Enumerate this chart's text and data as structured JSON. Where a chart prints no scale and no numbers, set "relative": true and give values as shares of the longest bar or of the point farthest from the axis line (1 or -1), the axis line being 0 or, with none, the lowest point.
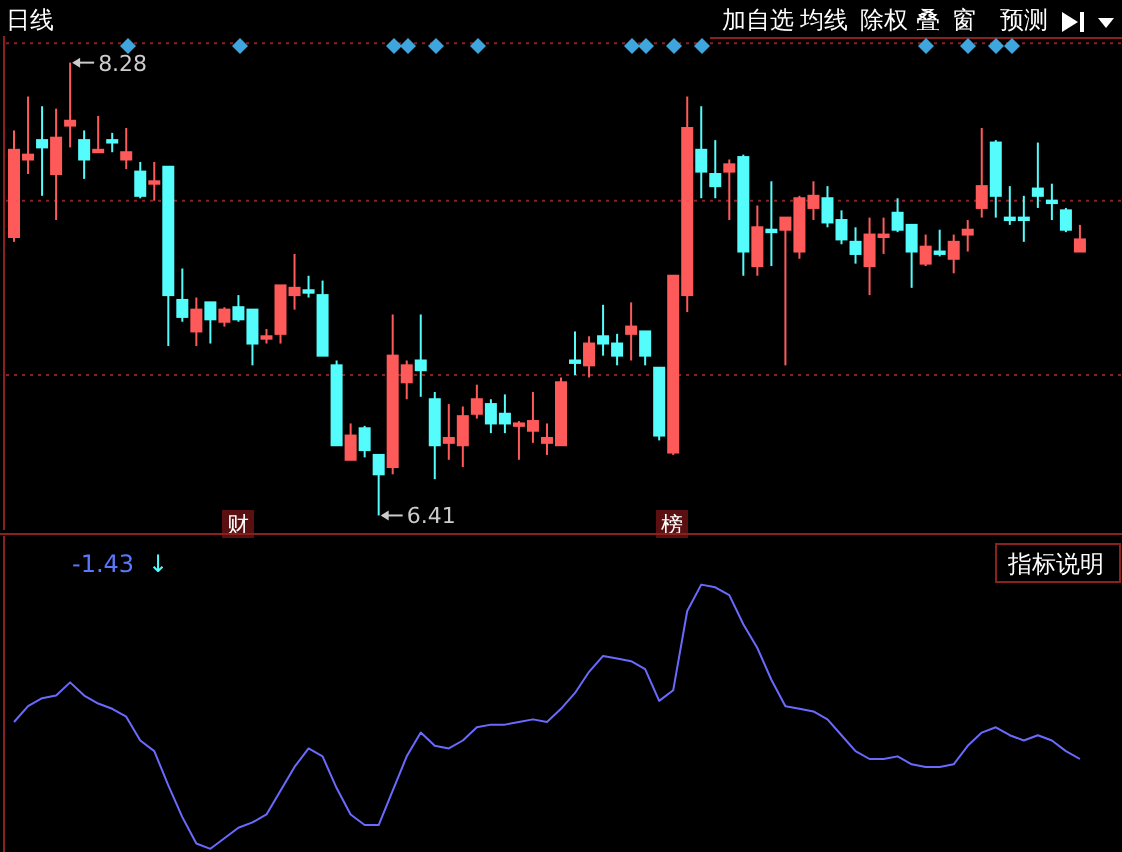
{
  "chart_data": [
    {
      "type": "candlestick",
      "title": "日线",
      "ylim": [
        6.35,
        8.39
      ],
      "grid": "y",
      "yticks": [
        {
          "value": 8.36,
          "label": null
        },
        {
          "value": 7.71,
          "label": null
        },
        {
          "value": 6.99,
          "label": null
        }
      ],
      "categories": [
        null,
        null,
        null,
        null,
        null,
        null,
        null,
        null,
        null,
        null,
        null,
        null,
        null,
        null,
        null,
        null,
        null,
        null,
        null,
        null,
        null,
        null,
        null,
        null,
        null,
        null,
        null,
        null,
        null,
        null,
        null,
        null,
        null,
        null,
        null,
        null,
        null,
        null,
        null,
        null,
        null,
        null,
        null,
        null,
        null,
        null,
        null,
        null,
        null,
        null,
        null,
        null,
        null,
        null,
        null,
        null,
        null,
        null,
        null,
        null,
        null,
        null,
        null,
        null,
        null,
        null,
        null,
        null,
        null,
        null,
        null,
        null,
        null,
        null,
        null,
        null,
        null
      ],
      "ohlc": [
        [
          7.56,
          8.0,
          7.54,
          7.92
        ],
        [
          7.88,
          8.14,
          7.82,
          7.9
        ],
        [
          7.96,
          8.1,
          7.73,
          7.93
        ],
        [
          7.82,
          8.09,
          7.63,
          7.97
        ],
        [
          8.02,
          8.28,
          7.93,
          8.04
        ],
        [
          7.96,
          8.0,
          7.8,
          7.88
        ],
        [
          7.91,
          8.06,
          7.91,
          7.92
        ],
        [
          7.96,
          7.99,
          7.91,
          7.95
        ],
        [
          7.88,
          8.01,
          7.84,
          7.91
        ],
        [
          7.83,
          7.87,
          7.72,
          7.73
        ],
        [
          7.78,
          7.87,
          7.71,
          7.79
        ],
        [
          7.85,
          7.85,
          7.11,
          7.32
        ],
        [
          7.3,
          7.43,
          7.21,
          7.23
        ],
        [
          7.17,
          7.31,
          7.11,
          7.26
        ],
        [
          7.29,
          7.29,
          7.12,
          7.22
        ],
        [
          7.21,
          7.27,
          7.19,
          7.26
        ],
        [
          7.27,
          7.32,
          7.21,
          7.22
        ],
        [
          7.26,
          7.26,
          7.03,
          7.12
        ],
        [
          7.14,
          7.18,
          7.12,
          7.15
        ],
        [
          7.16,
          7.36,
          7.12,
          7.36
        ],
        [
          7.32,
          7.49,
          7.26,
          7.35
        ],
        [
          7.34,
          7.4,
          7.31,
          7.33
        ],
        [
          7.32,
          7.38,
          7.07,
          7.07
        ],
        [
          7.03,
          7.05,
          6.7,
          6.7
        ],
        [
          6.64,
          6.79,
          6.64,
          6.74
        ],
        [
          6.77,
          6.78,
          6.65,
          6.68
        ],
        [
          6.66,
          6.66,
          6.41,
          6.58
        ],
        [
          6.61,
          7.24,
          6.58,
          7.07
        ],
        [
          6.96,
          7.05,
          6.89,
          7.03
        ],
        [
          7.05,
          7.24,
          6.9,
          7.01
        ],
        [
          6.89,
          6.92,
          6.56,
          6.7
        ],
        [
          6.71,
          6.87,
          6.64,
          6.73
        ],
        [
          6.7,
          6.86,
          6.61,
          6.82
        ],
        [
          6.83,
          6.95,
          6.81,
          6.89
        ],
        [
          6.87,
          6.89,
          6.75,
          6.79
        ],
        [
          6.83,
          6.91,
          6.75,
          6.79
        ],
        [
          6.78,
          6.8,
          6.64,
          6.79
        ],
        [
          6.76,
          6.92,
          6.71,
          6.8
        ],
        [
          6.71,
          6.79,
          6.66,
          6.73
        ],
        [
          6.7,
          6.98,
          6.7,
          6.96
        ],
        [
          7.05,
          7.17,
          6.99,
          7.04
        ],
        [
          7.03,
          7.15,
          6.98,
          7.12
        ],
        [
          7.15,
          7.28,
          7.07,
          7.12
        ],
        [
          7.12,
          7.16,
          7.03,
          7.07
        ],
        [
          7.16,
          7.29,
          7.05,
          7.19
        ],
        [
          7.17,
          7.17,
          7.03,
          7.07
        ],
        [
          7.02,
          7.02,
          6.72,
          6.74
        ],
        [
          6.67,
          7.4,
          6.66,
          7.4
        ],
        [
          7.32,
          8.14,
          7.25,
          8.01
        ],
        [
          7.92,
          8.1,
          7.72,
          7.83
        ],
        [
          7.82,
          7.96,
          7.72,
          7.77
        ],
        [
          7.83,
          7.88,
          7.63,
          7.86
        ],
        [
          7.89,
          7.9,
          7.4,
          7.5
        ],
        [
          7.44,
          7.69,
          7.4,
          7.6
        ],
        [
          7.59,
          7.79,
          7.44,
          7.58
        ],
        [
          7.59,
          7.64,
          7.03,
          7.64
        ],
        [
          7.5,
          7.73,
          7.47,
          7.72
        ],
        [
          7.68,
          7.79,
          7.63,
          7.73
        ],
        [
          7.72,
          7.77,
          7.6,
          7.62
        ],
        [
          7.63,
          7.67,
          7.53,
          7.55
        ],
        [
          7.54,
          7.6,
          7.45,
          7.49
        ],
        [
          7.44,
          7.64,
          7.32,
          7.57
        ],
        [
          7.56,
          7.64,
          7.49,
          7.57
        ],
        [
          7.66,
          7.72,
          7.58,
          7.59
        ],
        [
          7.61,
          7.61,
          7.35,
          7.5
        ],
        [
          7.45,
          7.57,
          7.44,
          7.52
        ],
        [
          7.5,
          7.59,
          7.48,
          7.49
        ],
        [
          7.47,
          7.57,
          7.41,
          7.54
        ],
        [
          7.57,
          7.63,
          7.5,
          7.59
        ],
        [
          7.68,
          8.01,
          7.64,
          7.77
        ],
        [
          7.95,
          7.96,
          7.64,
          7.73
        ],
        [
          7.64,
          7.77,
          7.61,
          7.63
        ],
        [
          7.64,
          7.73,
          7.54,
          7.63
        ],
        [
          7.76,
          7.95,
          7.68,
          7.73
        ],
        [
          7.71,
          7.78,
          7.63,
          7.7
        ],
        [
          7.67,
          7.68,
          7.58,
          7.59
        ],
        [
          7.5,
          7.61,
          7.5,
          7.55
        ]
      ],
      "colors": [
        "#ff5a5a",
        "#ff5a5a",
        "#54fcfc",
        "#ff5a5a",
        "#ff5a5a",
        "#54fcfc",
        "#ff5a5a",
        "#54fcfc",
        "#ff5a5a",
        "#54fcfc",
        "#ff5a5a",
        "#54fcfc",
        "#54fcfc",
        "#ff5a5a",
        "#54fcfc",
        "#ff5a5a",
        "#54fcfc",
        "#54fcfc",
        "#ff5a5a",
        "#ff5a5a",
        "#ff5a5a",
        "#54fcfc",
        "#54fcfc",
        "#54fcfc",
        "#ff5a5a",
        "#54fcfc",
        "#54fcfc",
        "#ff5a5a",
        "#ff5a5a",
        "#54fcfc",
        "#54fcfc",
        "#ff5a5a",
        "#ff5a5a",
        "#ff5a5a",
        "#54fcfc",
        "#54fcfc",
        "#ff5a5a",
        "#ff5a5a",
        "#ff5a5a",
        "#ff5a5a",
        "#54fcfc",
        "#ff5a5a",
        "#54fcfc",
        "#54fcfc",
        "#ff5a5a",
        "#54fcfc",
        "#54fcfc",
        "#ff5a5a",
        "#ff5a5a",
        "#54fcfc",
        "#54fcfc",
        "#ff5a5a",
        "#54fcfc",
        "#ff5a5a",
        "#54fcfc",
        "#ff5a5a",
        "#ff5a5a",
        "#ff5a5a",
        "#54fcfc",
        "#54fcfc",
        "#54fcfc",
        "#ff5a5a",
        "#ff5a5a",
        "#54fcfc",
        "#54fcfc",
        "#ff5a5a",
        "#54fcfc",
        "#ff5a5a",
        "#ff5a5a",
        "#ff5a5a",
        "#54fcfc",
        "#54fcfc",
        "#54fcfc",
        "#54fcfc",
        "#54fcfc",
        "#54fcfc",
        "#ff5a5a"
      ],
      "annotations": [
        "8.28",
        "6.41",
        "财",
        "榜",
        "加自选",
        "均线",
        "除权",
        "叠",
        "窗",
        "预测"
      ]
    },
    {
      "type": "line",
      "relative": true,
      "categories": [
        null,
        null,
        null,
        null,
        null,
        null,
        null,
        null,
        null,
        null,
        null,
        null,
        null,
        null,
        null,
        null,
        null,
        null,
        null,
        null,
        null,
        null,
        null,
        null,
        null,
        null,
        null,
        null,
        null,
        null,
        null,
        null,
        null,
        null,
        null,
        null,
        null,
        null,
        null,
        null,
        null,
        null,
        null,
        null,
        null,
        null,
        null,
        null,
        null,
        null,
        null,
        null,
        null,
        null,
        null,
        null,
        null,
        null,
        null,
        null,
        null,
        null,
        null,
        null,
        null,
        null,
        null,
        null,
        null,
        null,
        null,
        null,
        null,
        null,
        null,
        null,
        null
      ],
      "series": [
        {
          "color": "#6a6aff",
          "values": [
            0.48,
            0.54,
            0.57,
            0.58,
            0.63,
            0.58,
            0.55,
            0.53,
            0.5,
            0.41,
            0.37,
            0.24,
            0.12,
            0.02,
            0,
            0.04,
            0.08,
            0.1,
            0.13,
            0.22,
            0.31,
            0.38,
            0.35,
            0.23,
            0.13,
            0.09,
            0.09,
            0.22,
            0.35,
            0.44,
            0.39,
            0.38,
            0.41,
            0.46,
            0.47,
            0.47,
            0.48,
            0.49,
            0.48,
            0.53,
            0.59,
            0.67,
            0.73,
            0.72,
            0.71,
            0.68,
            0.56,
            0.6,
            0.9,
            1,
            0.99,
            0.96,
            0.85,
            0.76,
            0.64,
            0.54,
            0.53,
            0.52,
            0.49,
            0.43,
            0.37,
            0.34,
            0.34,
            0.35,
            0.32,
            0.31,
            0.31,
            0.32,
            0.39,
            0.44,
            0.46,
            0.43,
            0.41,
            0.43,
            0.41,
            0.37,
            0.34
          ]
        }
      ],
      "annotations": [
        "-1.43",
        "↓",
        "指标说明"
      ]
    }
  ]
}
